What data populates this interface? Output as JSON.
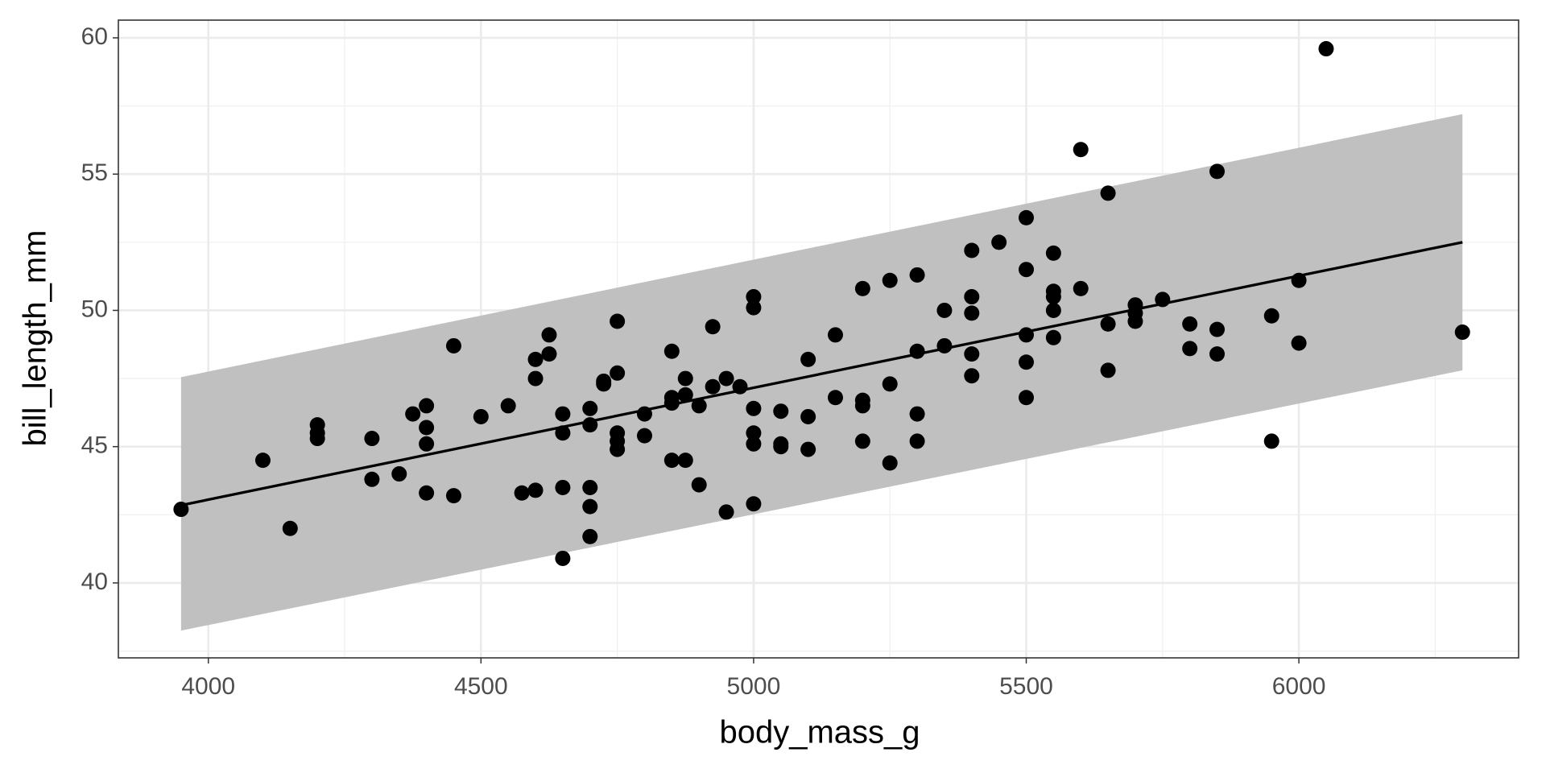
{
  "chart_data": {
    "type": "scatter",
    "x_label": "body_mass_g",
    "y_label": "bill_length_mm",
    "xlim": [
      3835,
      6403
    ],
    "ylim": [
      37.25,
      60.65
    ],
    "xticks": [
      4000,
      4500,
      5000,
      5500,
      6000
    ],
    "yticks": [
      40,
      45,
      50,
      55,
      60
    ],
    "xminorticks": [
      4250,
      4750,
      5250,
      5750,
      6250
    ],
    "yminorticks": [
      37.5,
      42.5,
      47.5,
      52.5,
      57.5
    ],
    "grid": true,
    "color": "#000000",
    "fit_color": "#000000",
    "band_color": "#c0c0c0",
    "x": [
      3950,
      4100,
      4150,
      4200,
      4200,
      4200,
      4300,
      4300,
      4350,
      4375,
      4400,
      4400,
      4400,
      4400,
      4450,
      4450,
      4500,
      4550,
      4575,
      4600,
      4600,
      4600,
      4625,
      4625,
      4650,
      4650,
      4650,
      4650,
      4700,
      4700,
      4700,
      4700,
      4700,
      4725,
      4725,
      4750,
      4750,
      4750,
      4750,
      4750,
      4800,
      4800,
      4850,
      4850,
      4850,
      4850,
      4875,
      4875,
      4875,
      4900,
      4900,
      4925,
      4925,
      4950,
      4950,
      4975,
      5000,
      5000,
      5000,
      5000,
      5000,
      5000,
      5050,
      5050,
      5050,
      5100,
      5100,
      5100,
      5150,
      5150,
      5200,
      5200,
      5200,
      5200,
      5250,
      5250,
      5250,
      5300,
      5300,
      5300,
      5300,
      5350,
      5350,
      5400,
      5400,
      5400,
      5400,
      5400,
      5450,
      5500,
      5500,
      5500,
      5500,
      5500,
      5550,
      5550,
      5550,
      5550,
      5550,
      5600,
      5600,
      5650,
      5650,
      5650,
      5700,
      5700,
      5700,
      5750,
      5800,
      5800,
      5850,
      5850,
      5850,
      5950,
      5950,
      6000,
      6000,
      6050,
      6300
    ],
    "values": [
      42.7,
      44.5,
      42.0,
      45.8,
      45.5,
      45.3,
      45.3,
      43.8,
      44.0,
      46.2,
      46.5,
      45.7,
      45.1,
      43.3,
      48.7,
      43.2,
      46.1,
      46.5,
      43.3,
      48.2,
      47.5,
      43.4,
      49.1,
      48.4,
      46.2,
      45.5,
      43.5,
      40.9,
      46.4,
      45.8,
      43.5,
      42.8,
      41.7,
      47.4,
      47.3,
      49.6,
      47.7,
      45.5,
      45.2,
      44.9,
      46.2,
      45.4,
      48.5,
      46.8,
      46.6,
      44.5,
      47.5,
      46.9,
      44.5,
      46.5,
      43.6,
      49.4,
      47.2,
      47.5,
      42.6,
      47.2,
      50.5,
      50.1,
      46.4,
      45.5,
      45.1,
      42.9,
      46.3,
      45.1,
      45.0,
      48.2,
      46.1,
      44.9,
      49.1,
      46.8,
      50.8,
      46.7,
      46.5,
      45.2,
      51.1,
      47.3,
      44.4,
      51.3,
      48.5,
      46.2,
      45.2,
      50.0,
      48.7,
      52.2,
      50.5,
      49.9,
      48.4,
      47.6,
      52.5,
      53.4,
      51.5,
      49.1,
      48.1,
      46.8,
      52.1,
      50.7,
      50.5,
      50.0,
      49.0,
      55.9,
      50.8,
      54.3,
      49.5,
      47.8,
      50.2,
      49.9,
      49.6,
      50.4,
      49.5,
      48.6,
      55.1,
      49.3,
      48.4,
      49.8,
      45.2,
      51.1,
      48.8,
      59.6,
      49.2
    ],
    "fit": {
      "x": [
        3950,
        6300
      ],
      "y": [
        42.85,
        52.5
      ]
    },
    "band": {
      "x": [
        3950,
        6300
      ],
      "lower": [
        38.25,
        47.8
      ],
      "upper": [
        47.55,
        57.2
      ]
    }
  }
}
